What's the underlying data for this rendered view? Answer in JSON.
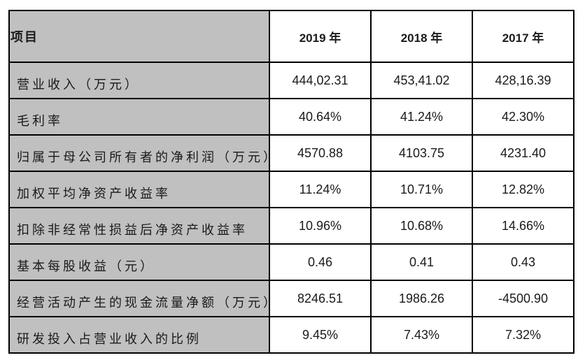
{
  "table": {
    "header": {
      "item_label": "项目",
      "years": [
        "2019 年",
        "2018 年",
        "2017 年"
      ]
    },
    "rows": [
      {
        "label": "营业收入（万元）",
        "values": [
          "444,02.31",
          "453,41.02",
          "428,16.39"
        ]
      },
      {
        "label": "毛利率",
        "values": [
          "40.64%",
          "41.24%",
          "42.30%"
        ]
      },
      {
        "label": "归属于母公司所有者的净利润（万元）",
        "values": [
          "4570.88",
          "4103.75",
          "4231.40"
        ]
      },
      {
        "label": "加权平均净资产收益率",
        "values": [
          "11.24%",
          "10.71%",
          "12.82%"
        ]
      },
      {
        "label": "扣除非经常性损益后净资产收益率",
        "values": [
          "10.96%",
          "10.68%",
          "14.66%"
        ]
      },
      {
        "label": "基本每股收益（元）",
        "values": [
          "0.46",
          "0.41",
          "0.43"
        ]
      },
      {
        "label": "经营活动产生的现金流量净额（万元）",
        "values": [
          "8246.51",
          "1986.26",
          "-4500.90"
        ]
      },
      {
        "label": "研发投入占营业收入的比例",
        "values": [
          "9.45%",
          "7.43%",
          "7.32%"
        ]
      }
    ],
    "colors": {
      "label_column_bg": "#c0c0c0",
      "value_cell_bg": "#ffffff",
      "border": "#000000",
      "text": "#1a1a1a",
      "page_bg": "#ffffff"
    }
  },
  "chart_data": {
    "type": "table",
    "title": "",
    "columns": [
      "项目",
      "2019 年",
      "2018 年",
      "2017 年"
    ],
    "rows": [
      [
        "营业收入（万元）",
        "444,02.31",
        "453,41.02",
        "428,16.39"
      ],
      [
        "毛利率",
        "40.64%",
        "41.24%",
        "42.30%"
      ],
      [
        "归属于母公司所有者的净利润（万元）",
        "4570.88",
        "4103.75",
        "4231.40"
      ],
      [
        "加权平均净资产收益率",
        "11.24%",
        "10.71%",
        "12.82%"
      ],
      [
        "扣除非经常性损益后净资产收益率",
        "10.96%",
        "10.68%",
        "14.66%"
      ],
      [
        "基本每股收益（元）",
        "0.46",
        "0.41",
        "0.43"
      ],
      [
        "经营活动产生的现金流量净额（万元）",
        "8246.51",
        "1986.26",
        "-4500.90"
      ],
      [
        "研发投入占营业收入的比例",
        "9.45%",
        "7.43%",
        "7.32%"
      ]
    ]
  }
}
